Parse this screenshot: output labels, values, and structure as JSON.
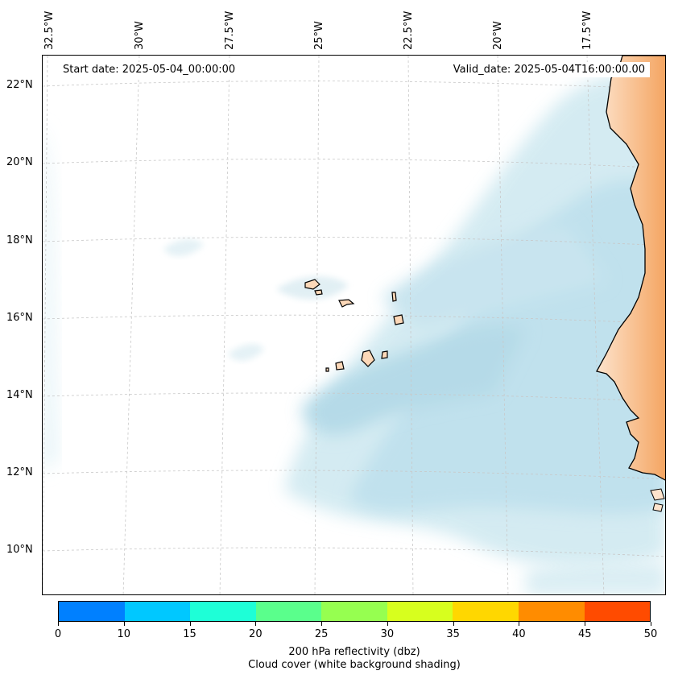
{
  "map": {
    "lon_labels": [
      "32.5°W",
      "30°W",
      "27.5°W",
      "25°W",
      "22.5°W",
      "20°W",
      "17.5°W"
    ],
    "lat_labels": [
      "22°N",
      "20°N",
      "18°N",
      "16°N",
      "14°N",
      "12°N",
      "10°N"
    ],
    "start_date": "Start date: 2025-05-04_00:00:00",
    "valid_date": "Valid_date: 2025-05-04T16:00:00.00",
    "cloud_color": "#add8e6",
    "land_color": "#f4a460"
  },
  "colorbar": {
    "colors": [
      "#0080ff",
      "#00c8ff",
      "#1effd7",
      "#5aff8c",
      "#96ff50",
      "#d7ff1e",
      "#ffd700",
      "#ff8c00",
      "#ff4b00"
    ],
    "tick_labels": [
      "0",
      "10",
      "15",
      "20",
      "25",
      "30",
      "35",
      "40",
      "45",
      "50"
    ],
    "label_line1": "200 hPa reflectivity (dbz)",
    "label_line2": "Cloud cover (white background shading)"
  }
}
